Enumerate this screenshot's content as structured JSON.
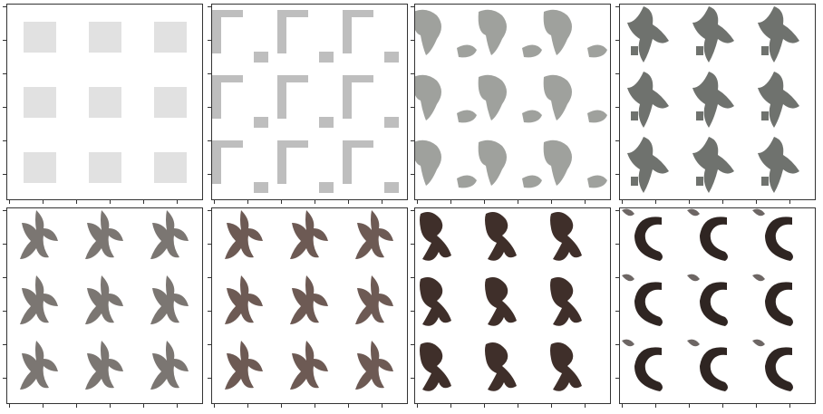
{
  "figure": {
    "rows": 2,
    "cols": 4,
    "grid_per_panel": [
      3,
      3
    ],
    "panels": [
      {
        "stage": 1,
        "style": "faint-squares",
        "color": "#c9c9c9"
      },
      {
        "stage": 2,
        "style": "corner-bars",
        "color": "#a8a8a8"
      },
      {
        "stage": 3,
        "style": "blobs",
        "color": "#8e918c"
      },
      {
        "stage": 4,
        "style": "branching",
        "color": "#6f726e"
      },
      {
        "stage": 5,
        "style": "figures",
        "color": "#7b7672"
      },
      {
        "stage": 6,
        "style": "figures-colored",
        "color": "#6d5a54"
      },
      {
        "stage": 7,
        "style": "dark-figures",
        "color": "#3f2f2a"
      },
      {
        "stage": 8,
        "style": "dark-curves",
        "color": "#2f2522"
      }
    ]
  }
}
